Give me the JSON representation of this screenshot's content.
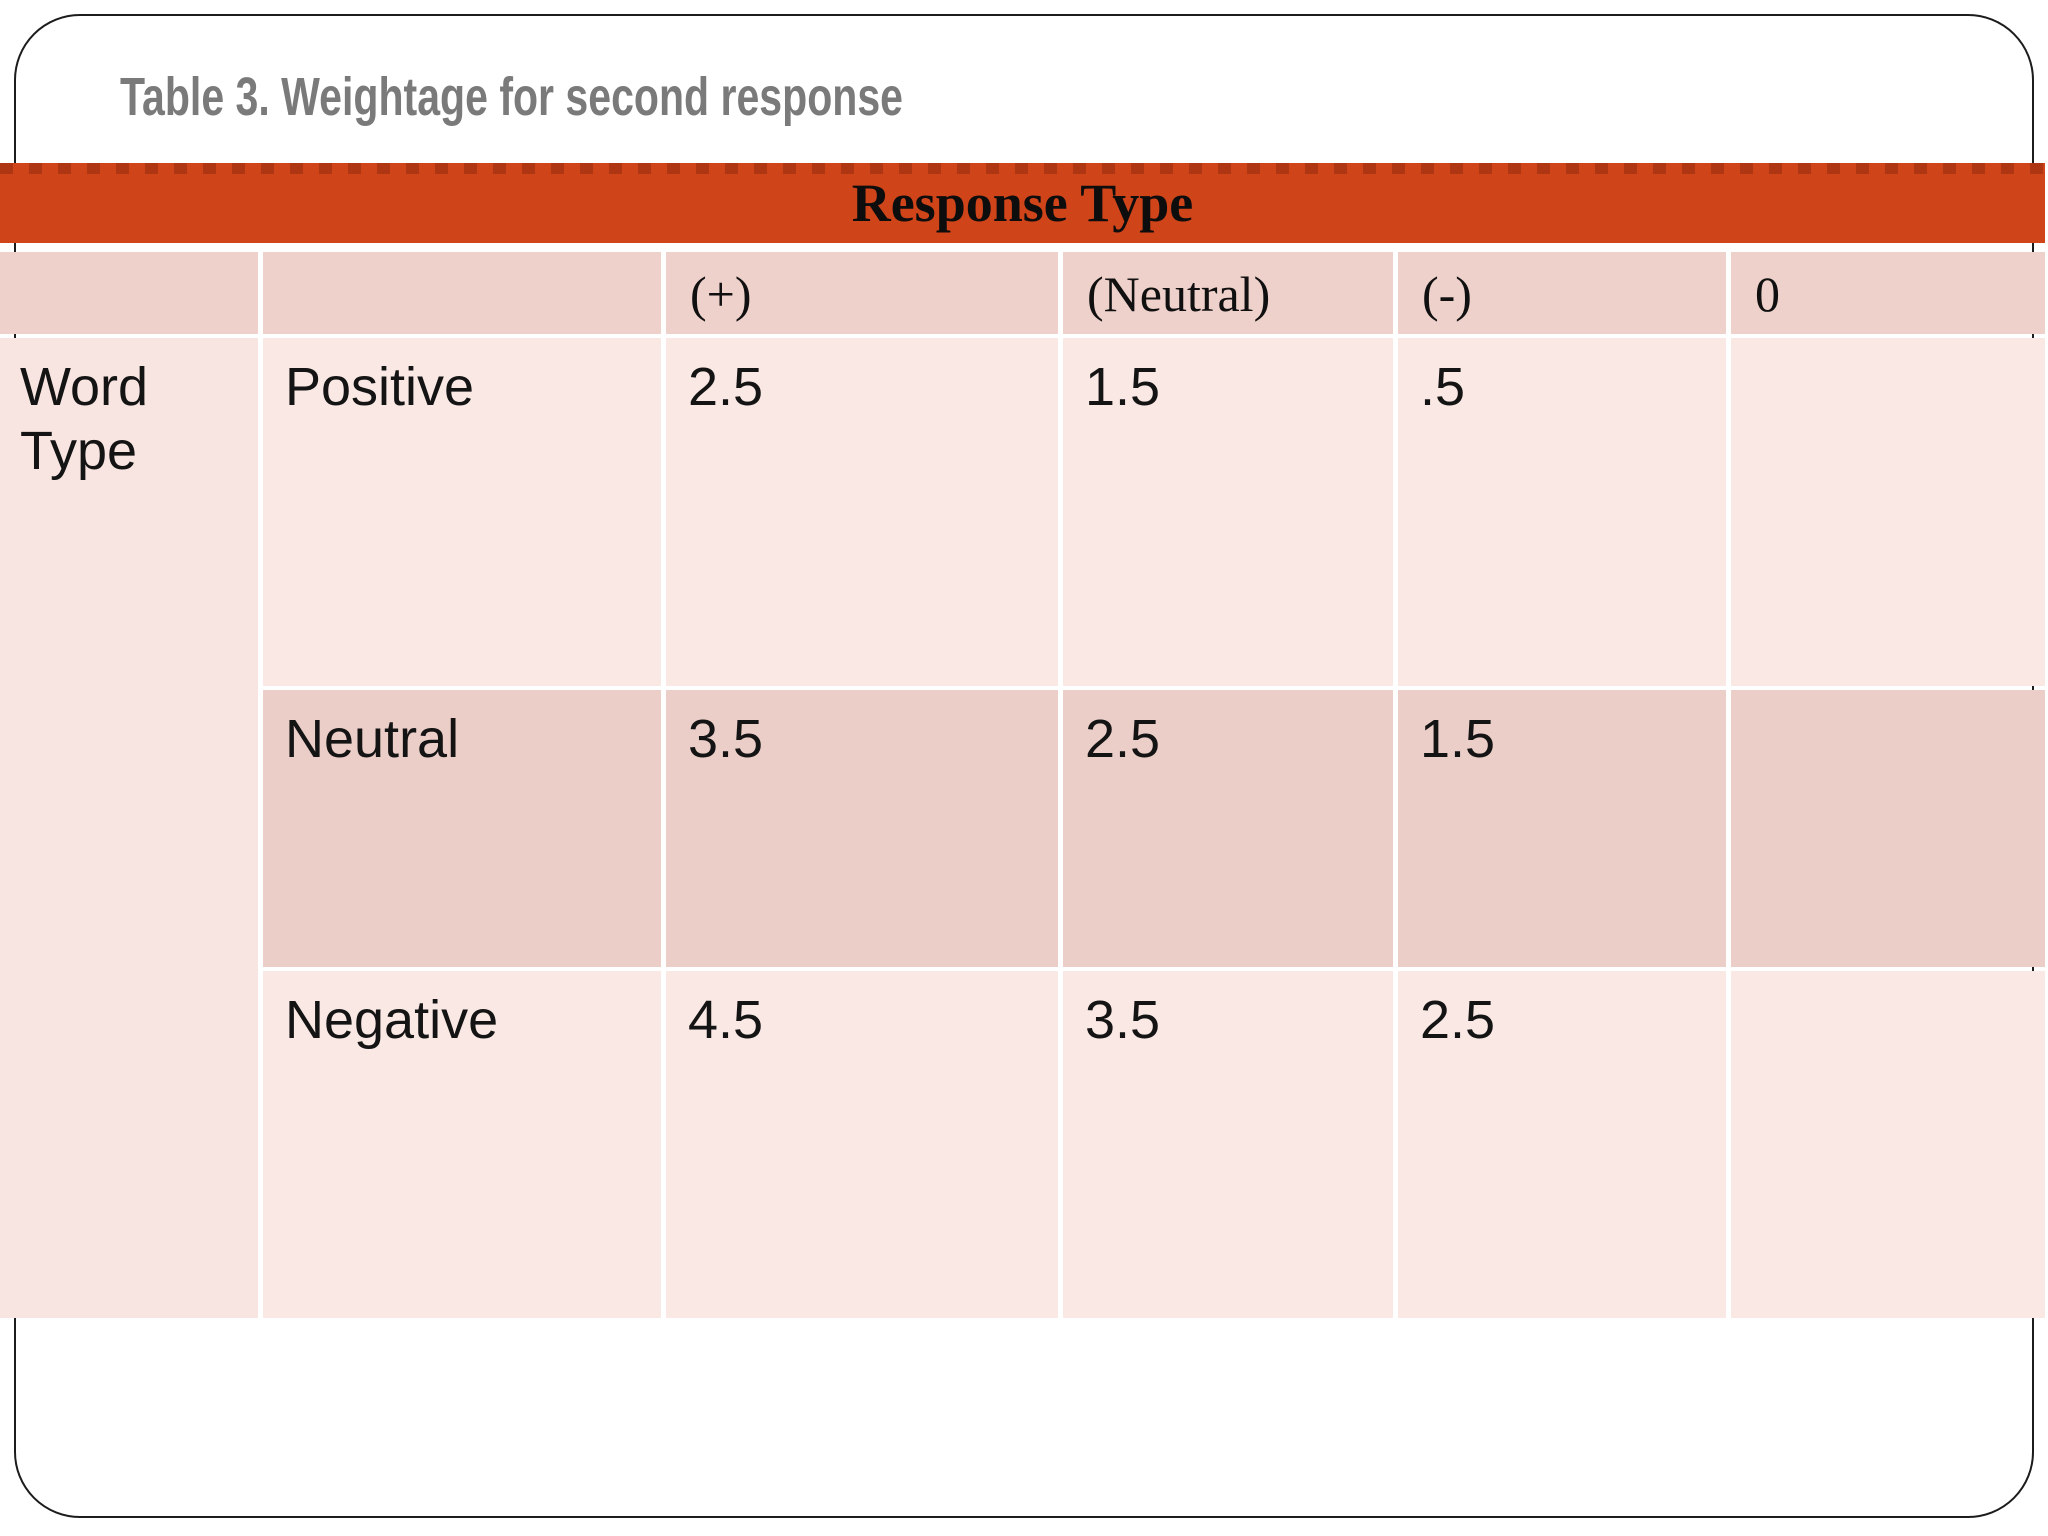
{
  "slide": {
    "title": "Table 3. Weightage for second response"
  },
  "table": {
    "banner_title": "Response Type",
    "axis_label": "Word Type",
    "column_headers": [
      "(+)",
      "(Neutral)",
      "(-)",
      "0"
    ],
    "rows": [
      {
        "label": "Positive",
        "values": [
          "2.5",
          "1.5",
          ".5",
          ""
        ]
      },
      {
        "label": "Neutral",
        "values": [
          "3.5",
          "2.5",
          "1.5",
          ""
        ]
      },
      {
        "label": "Negative",
        "values": [
          "4.5",
          "3.5",
          "2.5",
          ""
        ]
      }
    ]
  },
  "chart_data": {
    "type": "table",
    "title": "Table 3. Weightage for second response",
    "column_group_label": "Response Type",
    "row_group_label": "Word Type",
    "columns": [
      "(+)",
      "(Neutral)",
      "(-)",
      "0"
    ],
    "rows": [
      "Positive",
      "Neutral",
      "Negative"
    ],
    "values": [
      [
        2.5,
        1.5,
        0.5,
        null
      ],
      [
        3.5,
        2.5,
        1.5,
        null
      ],
      [
        4.5,
        3.5,
        2.5,
        null
      ]
    ]
  },
  "colors": {
    "banner_orange": "#d0441a",
    "banner_dash": "#7a1f08",
    "header_pink": "#eed1cb",
    "band_pink": "#ebcec8",
    "light_pink": "#f9e8e4",
    "axis_pink": "#f8e5e1",
    "frame_border": "#1c1c1c",
    "title_gray": "#7a7a7a"
  }
}
